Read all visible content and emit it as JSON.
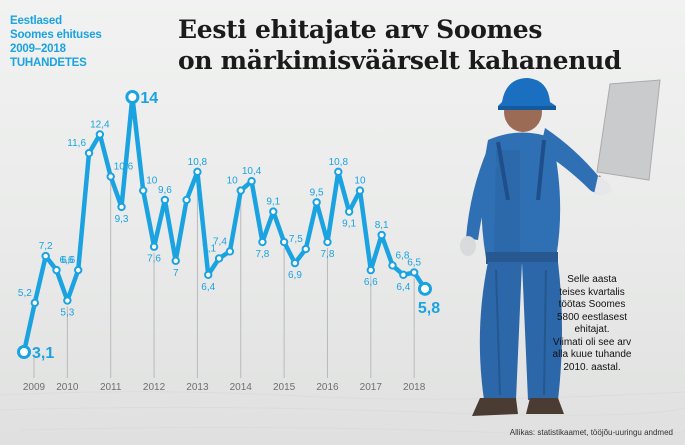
{
  "title": {
    "lines": [
      "Eesti ehitajate arv Soomes",
      "on märkimisväärselt kahanenud"
    ]
  },
  "subtitle": {
    "lines": [
      "Eestlased",
      "Soomes ehituses",
      "2009–2018",
      "TUHANDETES"
    ]
  },
  "chart_data": {
    "type": "line",
    "title": "Eesti ehitajate arv Soomes on märkimisväärselt kahanenud",
    "ylabel": "TUHANDETES",
    "years": [
      "2009",
      "2010",
      "2011",
      "2012",
      "2013",
      "2014",
      "2015",
      "2016",
      "2017",
      "2018"
    ],
    "points_per_year": 4,
    "ylim": [
      2.5,
      14.5
    ],
    "color": "#1ba3e1",
    "values": [
      3.1,
      5.2,
      7.2,
      6.6,
      5.3,
      6.6,
      11.6,
      12.4,
      10.6,
      9.3,
      14,
      10,
      7.6,
      9.6,
      7,
      9.6,
      10.8,
      6.4,
      7.1,
      7.4,
      10,
      10.4,
      7.8,
      9.1,
      7.8,
      6.9,
      7.5,
      9.5,
      7.8,
      10.8,
      9.1,
      10,
      6.6,
      8.1,
      6.8,
      6.4,
      6.5,
      5.8
    ],
    "labels": [
      "3,1",
      "5,2",
      "7,2",
      "6,6",
      "5,3",
      "6,6",
      "11,6",
      "12,4",
      "10,6",
      "9,3",
      "14",
      "10",
      "7,6",
      "9,6",
      "7",
      "",
      "10,8",
      "6,4",
      "7,1",
      "7,4",
      "10",
      "10,4",
      "7,8",
      "9,1",
      "",
      "6,9",
      "7,5",
      "9,5",
      "7,8",
      "10,8",
      "9,1",
      "10",
      "6,6",
      "8,1",
      "6,8",
      "6,4",
      "6,5",
      "5,8"
    ],
    "highlighted_points": [
      0,
      10,
      37
    ]
  },
  "note": {
    "lines": [
      "Selle aasta",
      "teises kvartalis",
      "töötas Soomes",
      "5800 eestlasest",
      "ehitajat.",
      "Viimati oli see arv",
      "alla kuue tuhande",
      "2010. aastal."
    ]
  },
  "source": "Allikas: statistikaamet, tööjõu-uuringu andmed"
}
